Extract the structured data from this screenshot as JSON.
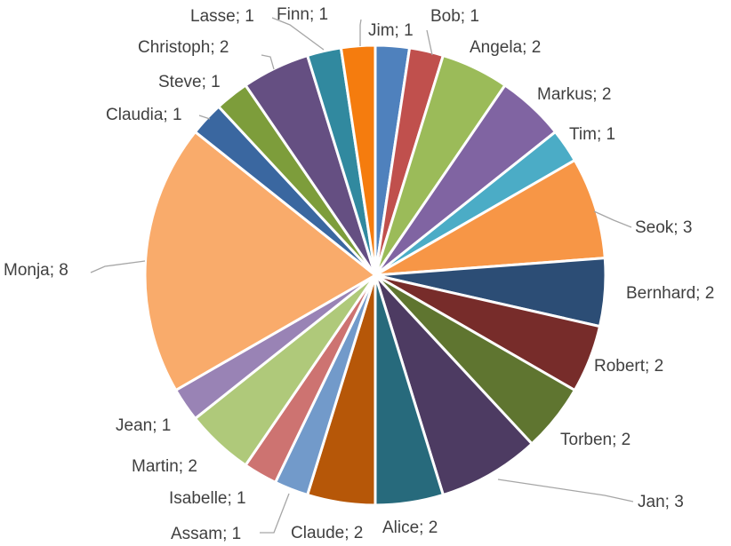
{
  "chart_data": {
    "type": "pie",
    "title": "",
    "legend": "none",
    "slices": [
      {
        "label": "Jim",
        "value": 1,
        "color": "#4f81bd",
        "text": "Jim; 1"
      },
      {
        "label": "Bob",
        "value": 1,
        "color": "#c0504d",
        "text": "Bob; 1"
      },
      {
        "label": "Angela",
        "value": 2,
        "color": "#9bbb59",
        "text": "Angela; 2"
      },
      {
        "label": "Markus",
        "value": 2,
        "color": "#8064a2",
        "text": "Markus; 2"
      },
      {
        "label": "Tim",
        "value": 1,
        "color": "#4bacc6",
        "text": "Tim; 1"
      },
      {
        "label": "Seok",
        "value": 3,
        "color": "#f79646",
        "text": "Seok; 3"
      },
      {
        "label": "Bernhard",
        "value": 2,
        "color": "#2c4d75",
        "text": "Bernhard; 2"
      },
      {
        "label": "Robert",
        "value": 2,
        "color": "#772c2a",
        "text": "Robert; 2"
      },
      {
        "label": "Torben",
        "value": 2,
        "color": "#5f7530",
        "text": "Torben; 2"
      },
      {
        "label": "Jan",
        "value": 3,
        "color": "#4d3b62",
        "text": "Jan; 3"
      },
      {
        "label": "Alice",
        "value": 2,
        "color": "#276a7c",
        "text": "Alice; 2"
      },
      {
        "label": "Claude",
        "value": 2,
        "color": "#b65708",
        "text": "Claude; 2"
      },
      {
        "label": "Assam",
        "value": 1,
        "color": "#729aca",
        "text": "Assam; 1"
      },
      {
        "label": "Isabelle",
        "value": 1,
        "color": "#cd7371",
        "text": "Isabelle; 1"
      },
      {
        "label": "Martin",
        "value": 2,
        "color": "#afc97a",
        "text": "Martin; 2"
      },
      {
        "label": "Jean",
        "value": 1,
        "color": "#9983b5",
        "text": "Jean; 1"
      },
      {
        "label": "Monja",
        "value": 8,
        "color": "#f9ab6b",
        "text": "Monja; 8"
      },
      {
        "label": "Claudia",
        "value": 1,
        "color": "#3a67a0",
        "text": "Claudia; 1"
      },
      {
        "label": "Steve",
        "value": 1,
        "color": "#7d9d3b",
        "text": "Steve; 1"
      },
      {
        "label": "Christoph",
        "value": 2,
        "color": "#654f82",
        "text": "Christoph; 2"
      },
      {
        "label": "Lasse",
        "value": 1,
        "color": "#31899f",
        "text": "Lasse; 1"
      },
      {
        "label": "Finn",
        "value": 1,
        "color": "#f57c0e",
        "text": "Finn; 1"
      }
    ]
  }
}
